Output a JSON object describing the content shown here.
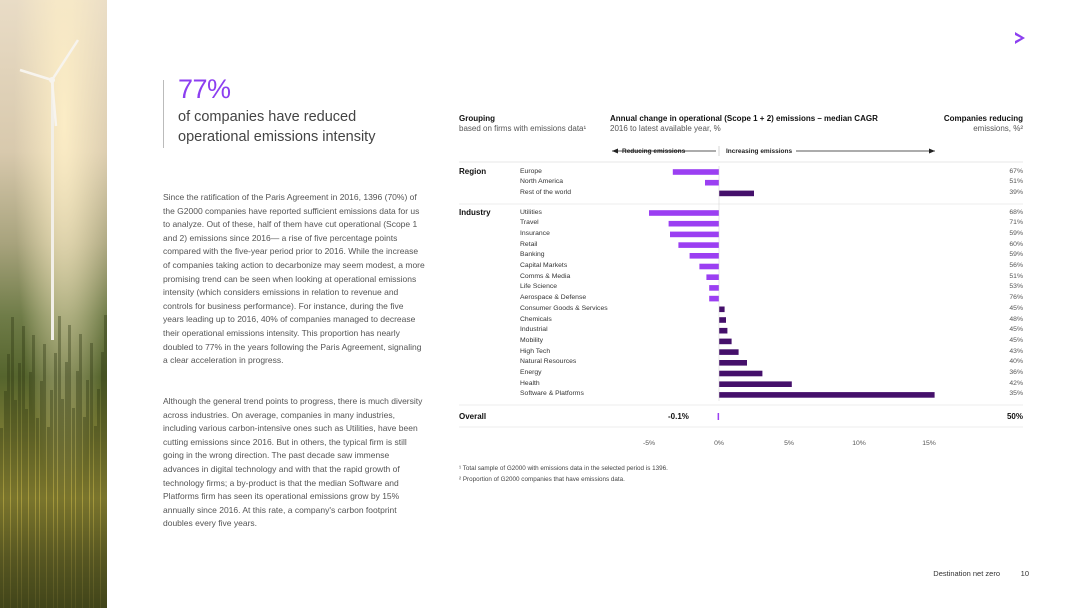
{
  "photo_alt": "Wind turbine on a hillside with autumn forest",
  "accent_icon": "chevron-right-icon",
  "colors": {
    "accent": "#8c3ff0",
    "increasing": "#45106b",
    "reducing": "#9b3ff2"
  },
  "stat": {
    "value": "77%",
    "line1": "of companies have reduced",
    "line2": "operational emissions intensity"
  },
  "body_paragraphs": [
    "Since the ratification of the Paris Agreement in 2016, 1396 (70%) of the G2000 companies have reported sufficient emissions data for us to analyze. Out of these, half of them have cut operational (Scope 1 and 2) emissions since 2016— a rise of five percentage points compared with the five-year period prior to 2016. While the increase of companies taking action to decarbonize may seem modest, a more promising trend can be seen when looking at operational emissions intensity (which considers emissions in relation to revenue and controls for business performance). For instance, during the five years leading up to 2016, 40% of companies managed to decrease their operational emissions intensity. This proportion has nearly doubled to 77% in the years following the Paris Agreement, signaling a clear acceleration in progress.",
    "Although the general trend points to progress, there is much diversity across industries. On average, companies in many industries, including various carbon-intensive ones such as Utilities, have been cutting emissions since 2016. But in others, the typical firm is still going in the wrong direction. The past decade saw immense advances in digital technology and with that the rapid growth of technology firms; a by-product is that the median Software and Platforms firm has seen its operational emissions grow by 15% annually since 2016. At this rate, a company's carbon footprint doubles every five years."
  ],
  "chart_data": {
    "type": "bar",
    "orientation": "horizontal",
    "headers": {
      "grouping_title": "Grouping",
      "grouping_sub": "based on firms with emissions data¹",
      "change_title": "Annual change in operational (Scope 1 + 2) emissions – median CAGR",
      "change_sub": "2016 to latest available year, %",
      "reducing_title": "Companies reducing",
      "reducing_sub": "emissions, %²"
    },
    "arrow_labels": {
      "left": "Reducing emissions",
      "right": "Increasing emissions"
    },
    "groups": [
      {
        "name": "Region",
        "rows": [
          {
            "category": "Europe",
            "value": -3.3,
            "share": "67%"
          },
          {
            "category": "North America",
            "value": -1.0,
            "share": "51%"
          },
          {
            "category": "Rest of the world",
            "value": 2.5,
            "share": "39%"
          }
        ]
      },
      {
        "name": "Industry",
        "rows": [
          {
            "category": "Utilities",
            "value": -5.0,
            "share": "68%"
          },
          {
            "category": "Travel",
            "value": -3.6,
            "share": "71%"
          },
          {
            "category": "Insurance",
            "value": -3.5,
            "share": "59%"
          },
          {
            "category": "Retail",
            "value": -2.9,
            "share": "60%"
          },
          {
            "category": "Banking",
            "value": -2.1,
            "share": "59%"
          },
          {
            "category": "Capital Markets",
            "value": -1.4,
            "share": "56%"
          },
          {
            "category": "Comms & Media",
            "value": -0.9,
            "share": "51%"
          },
          {
            "category": "Life Science",
            "value": -0.7,
            "share": "53%"
          },
          {
            "category": "Aerospace & Defense",
            "value": -0.7,
            "share": "76%"
          },
          {
            "category": "Consumer Goods & Services",
            "value": 0.4,
            "share": "45%"
          },
          {
            "category": "Chemicals",
            "value": 0.5,
            "share": "48%"
          },
          {
            "category": "Industrial",
            "value": 0.6,
            "share": "45%"
          },
          {
            "category": "Mobility",
            "value": 0.9,
            "share": "45%"
          },
          {
            "category": "High Tech",
            "value": 1.4,
            "share": "43%"
          },
          {
            "category": "Natural Resources",
            "value": 2.0,
            "share": "40%"
          },
          {
            "category": "Energy",
            "value": 3.1,
            "share": "36%"
          },
          {
            "category": "Health",
            "value": 5.2,
            "share": "42%"
          },
          {
            "category": "Software & Platforms",
            "value": 15.4,
            "share": "35%"
          }
        ]
      }
    ],
    "overall": {
      "label": "Overall",
      "value": -0.1,
      "value_label": "-0.1%",
      "share": "50%"
    },
    "x_ticks": [
      -5,
      0,
      5,
      10,
      15
    ],
    "x_tick_labels": [
      "-5%",
      "0%",
      "5%",
      "10%",
      "15%"
    ],
    "xlim": [
      -5.2,
      16
    ],
    "footnotes": [
      "¹ Total sample of G2000 with emissions data in the selected period is 1396.",
      "² Proportion of G2000 companies that have emissions data."
    ]
  },
  "footer": {
    "title": "Destination net zero",
    "page": "10"
  }
}
